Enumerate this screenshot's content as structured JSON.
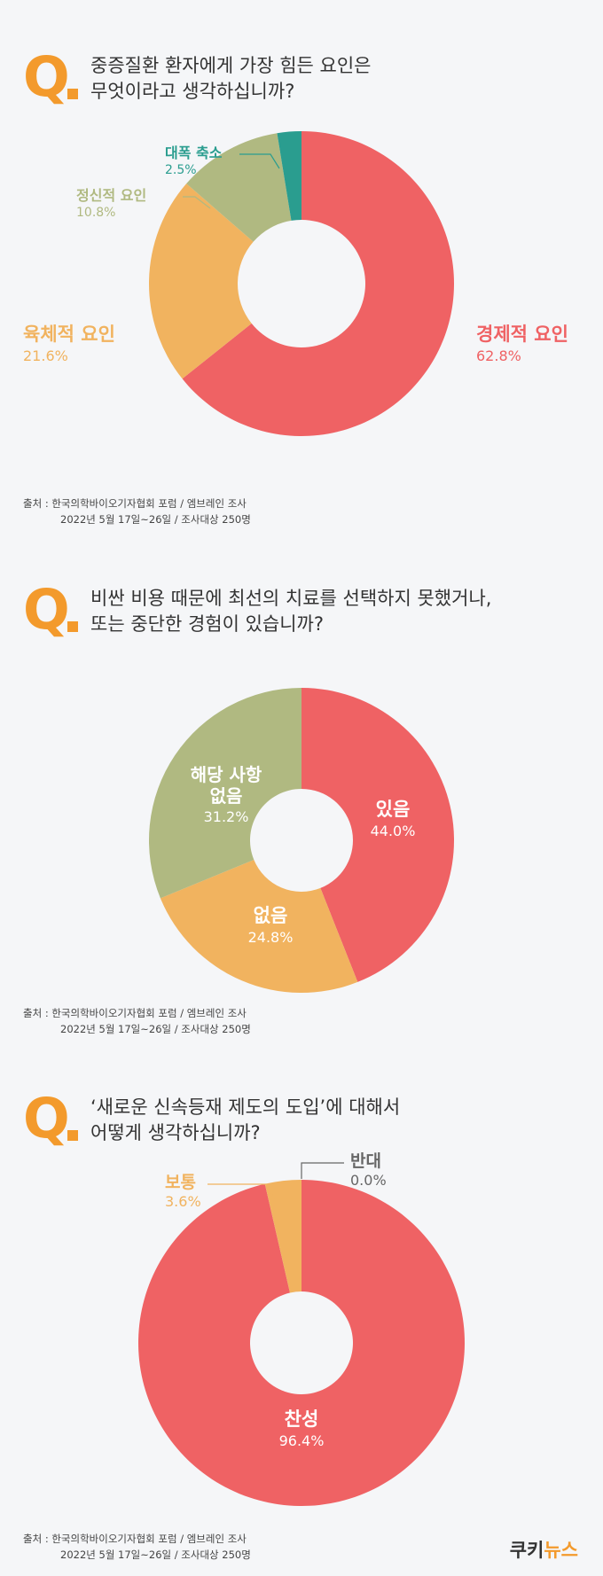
{
  "chart_data": [
    {
      "type": "pie",
      "question": [
        "중증질환 환자에게 가장 힘든 요인은",
        "무엇이라고 생각하십니까?"
      ],
      "slices": [
        {
          "label": "경제적 요인",
          "value": 62.8,
          "display": "62.8%",
          "color": "#ef6264"
        },
        {
          "label": "육체적 요인",
          "value": 21.6,
          "display": "21.6%",
          "color": "#f1b35f"
        },
        {
          "label": "정신적 요인",
          "value": 10.8,
          "display": "10.8%",
          "color": "#b0b981"
        },
        {
          "label": "대폭 축소",
          "value": 2.5,
          "display": "2.5%",
          "color": "#2a9d8f"
        }
      ]
    },
    {
      "type": "pie",
      "question": [
        "비싼 비용 때문에 최선의 치료를 선택하지 못했거나,",
        "또는 중단한 경험이 있습니까?"
      ],
      "slices": [
        {
          "label": "있음",
          "value": 44.0,
          "display": "44.0%",
          "color": "#ef6264"
        },
        {
          "label": "없음",
          "value": 24.8,
          "display": "24.8%",
          "color": "#f1b35f"
        },
        {
          "label": "해당 사항 없음",
          "label_lines": [
            "해당 사항",
            "없음"
          ],
          "value": 31.2,
          "display": "31.2%",
          "color": "#b0b981"
        }
      ]
    },
    {
      "type": "pie",
      "question": [
        "‘새로운 신속등재 제도의 도입’에 대해서",
        "어떻게 생각하십니까?"
      ],
      "slices": [
        {
          "label": "찬성",
          "value": 96.4,
          "display": "96.4%",
          "color": "#ef6264"
        },
        {
          "label": "보통",
          "value": 3.6,
          "display": "3.6%",
          "color": "#f1b35f"
        },
        {
          "label": "반대",
          "value": 0.0,
          "display": "0.0%",
          "color": "#666666"
        }
      ]
    }
  ],
  "q_label": "Q",
  "source": {
    "line1": "출처 : 한국의학바이오기자협회 포럼 / 엠브레인 조사",
    "line2": "2022년 5월 17일~26일 / 조사대상 250명"
  },
  "brand": {
    "part1": "쿠키",
    "part2": "뉴스"
  }
}
